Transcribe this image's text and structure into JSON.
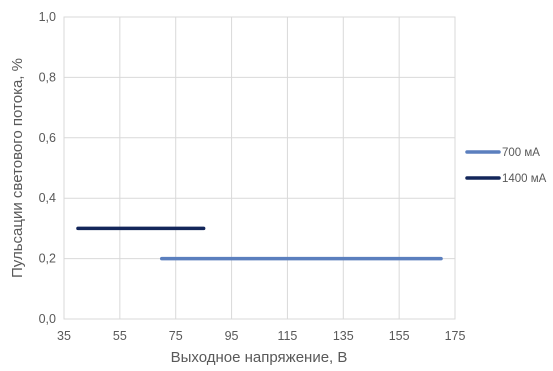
{
  "chart_data": {
    "type": "line",
    "title": "",
    "xlabel": "Выходное напряжение, В",
    "ylabel": "Пульсации светового потока, %",
    "xlim": [
      35,
      175
    ],
    "ylim": [
      0,
      1.0
    ],
    "x_ticks": [
      "35",
      "55",
      "75",
      "95",
      "115",
      "135",
      "155",
      "175"
    ],
    "x_tick_values": [
      35,
      55,
      75,
      95,
      115,
      135,
      155,
      175
    ],
    "y_ticks": [
      "0,0",
      "0,2",
      "0,4",
      "0,6",
      "0,8",
      "1,0"
    ],
    "y_tick_values": [
      0,
      0.2,
      0.4,
      0.6,
      0.8,
      1.0
    ],
    "grid": true,
    "legend_position": "right",
    "series": [
      {
        "name": "700 мА",
        "color": "#5b7fbe",
        "x": [
          70,
          170
        ],
        "y": [
          0.2,
          0.2
        ]
      },
      {
        "name": "1400 мА",
        "color": "#13265a",
        "x": [
          40,
          85
        ],
        "y": [
          0.3,
          0.3
        ]
      }
    ]
  }
}
